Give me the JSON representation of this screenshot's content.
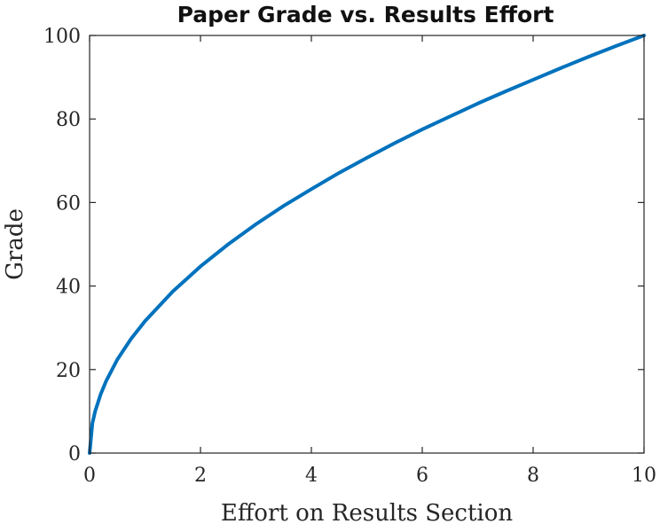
{
  "chart_data": {
    "type": "line",
    "title": "Paper Grade vs. Results Effort",
    "xlabel": "Effort on Results Section",
    "ylabel": "Grade",
    "xlim": [
      0,
      10
    ],
    "ylim": [
      0,
      100
    ],
    "x_ticks": [
      "0",
      "2",
      "4",
      "6",
      "8",
      "10"
    ],
    "y_ticks": [
      "0",
      "20",
      "40",
      "60",
      "80",
      "100"
    ],
    "grid": false,
    "legend": "none",
    "series": [
      {
        "color": "#0072BD",
        "x": [
          0,
          0.05,
          0.1,
          0.2,
          0.3,
          0.5,
          0.75,
          1,
          1.5,
          2,
          2.5,
          3,
          3.5,
          4,
          4.5,
          5,
          5.5,
          6,
          6.5,
          7,
          7.5,
          8,
          8.5,
          9,
          9.5,
          10
        ],
        "y": [
          0,
          7.1,
          10.0,
          14.1,
          17.3,
          22.4,
          27.4,
          31.6,
          38.7,
          44.7,
          50.0,
          54.8,
          59.2,
          63.2,
          67.1,
          70.7,
          74.2,
          77.5,
          80.6,
          83.7,
          86.6,
          89.4,
          92.2,
          94.9,
          97.5,
          100
        ]
      }
    ]
  }
}
